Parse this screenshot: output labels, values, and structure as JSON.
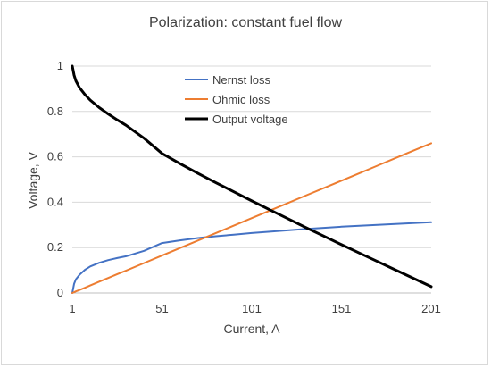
{
  "chart_data": {
    "type": "line",
    "title": "Polarization: constant fuel flow",
    "xlabel": "Current, A",
    "ylabel": "Voltage, V",
    "xlim": [
      1,
      201
    ],
    "ylim": [
      0,
      1
    ],
    "x_ticks": [
      "1",
      "51",
      "101",
      "151",
      "201"
    ],
    "y_ticks": [
      "0",
      "0.2",
      "0.4",
      "0.6",
      "0.8",
      "1"
    ],
    "grid": "horizontal",
    "legend_position": "upper-center",
    "x": [
      1,
      2,
      3,
      5,
      8,
      11,
      16,
      21,
      26,
      31,
      41,
      51,
      61,
      71,
      81,
      91,
      101,
      111,
      121,
      131,
      141,
      151,
      161,
      171,
      181,
      191,
      201
    ],
    "series": [
      {
        "name": "Nernst loss",
        "color": "#4472c4",
        "values": [
          0.0,
          0.04,
          0.06,
          0.08,
          0.102,
          0.117,
          0.133,
          0.145,
          0.154,
          0.162,
          0.186,
          0.22,
          0.232,
          0.242,
          0.25,
          0.257,
          0.264,
          0.27,
          0.276,
          0.282,
          0.287,
          0.292,
          0.296,
          0.3,
          0.304,
          0.308,
          0.312
        ]
      },
      {
        "name": "Ohmic loss",
        "color": "#ed7d31",
        "values": [
          0.0,
          0.003,
          0.007,
          0.013,
          0.023,
          0.033,
          0.05,
          0.066,
          0.083,
          0.099,
          0.132,
          0.165,
          0.198,
          0.231,
          0.264,
          0.297,
          0.33,
          0.363,
          0.396,
          0.429,
          0.462,
          0.495,
          0.528,
          0.561,
          0.594,
          0.627,
          0.66
        ]
      },
      {
        "name": "Output voltage",
        "color": "#000000",
        "values": [
          1.0,
          0.96,
          0.935,
          0.905,
          0.875,
          0.85,
          0.817,
          0.789,
          0.763,
          0.739,
          0.682,
          0.615,
          0.57,
          0.527,
          0.486,
          0.446,
          0.406,
          0.367,
          0.328,
          0.289,
          0.251,
          0.213,
          0.176,
          0.139,
          0.102,
          0.065,
          0.028
        ]
      }
    ]
  }
}
